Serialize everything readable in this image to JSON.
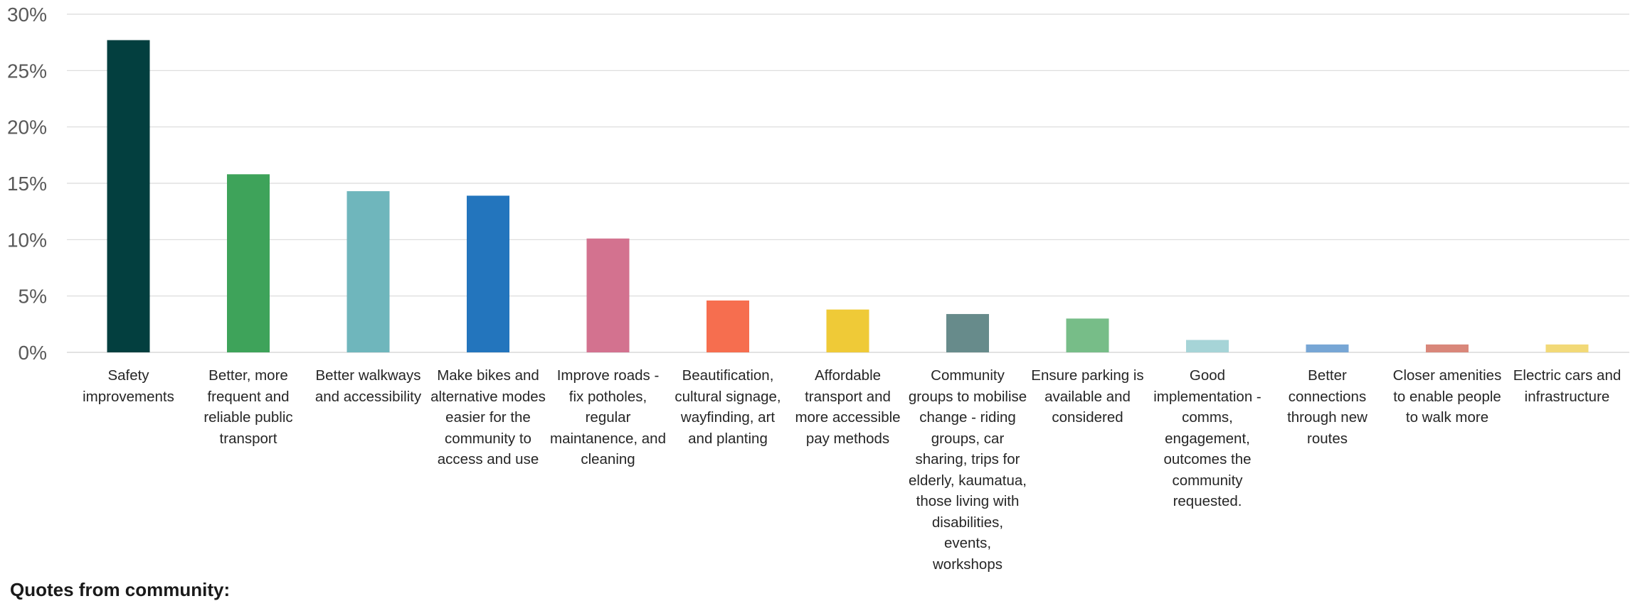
{
  "chart_data": {
    "type": "bar",
    "categories": [
      "Safety improvements",
      "Better, more frequent and reliable public transport",
      "Better walkways and accessibility",
      "Make bikes and alternative modes easier for the community to access and use",
      "Improve roads - fix potholes, regular maintanence, and cleaning",
      "Beautification, cultural signage, wayfinding, art and planting",
      "Affordable transport and more accessible pay methods",
      "Community groups to mobilise change - riding groups, car sharing, trips for elderly, kaumatua, those living with disabilities, events, workshops",
      "Ensure parking is available and considered",
      "Good implementation - comms, engagement, outcomes the community requested.",
      "Better connections through new routes",
      "Closer amenities to enable people to walk more",
      "Electric cars and infrastructure"
    ],
    "values": [
      27.7,
      15.8,
      14.3,
      13.9,
      10.1,
      4.6,
      3.8,
      3.4,
      3.0,
      1.1,
      0.7,
      0.7,
      0.7
    ],
    "colors": [
      "#033f3f",
      "#3ea35a",
      "#6fb6bc",
      "#2375bd",
      "#d3728f",
      "#f66e4f",
      "#efca37",
      "#678b8b",
      "#77bd88",
      "#a6d4d7",
      "#77a6d5",
      "#d9877a",
      "#f2d977"
    ],
    "y_ticks": [
      "0%",
      "5%",
      "10%",
      "15%",
      "20%",
      "25%",
      "30%"
    ],
    "ylim": [
      0,
      30
    ],
    "grid": true,
    "legend": "none",
    "gridline_color": "#d9d9d9"
  },
  "footer": {
    "heading": "Quotes from community:"
  }
}
